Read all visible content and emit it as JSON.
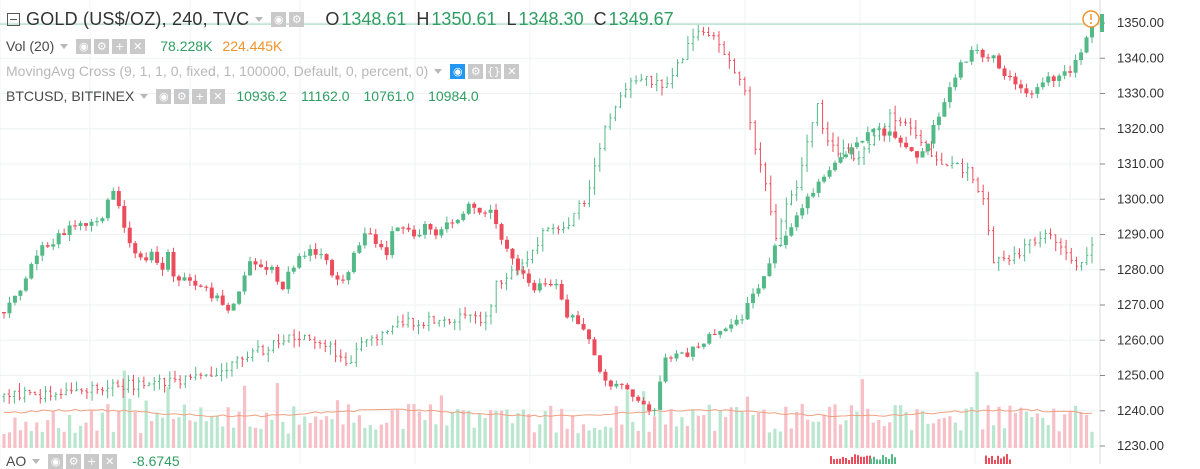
{
  "symbol": {
    "title": "GOLD (US$/OZ), 240, TVC",
    "ohlc": [
      {
        "key": "O",
        "value": "1348.61"
      },
      {
        "key": "H",
        "value": "1350.61"
      },
      {
        "key": "L",
        "value": "1348.30"
      },
      {
        "key": "C",
        "value": "1349.67"
      }
    ]
  },
  "volume": {
    "label": "Vol (20)",
    "value1": "78.228K",
    "value2": "224.445K"
  },
  "moving_avg": {
    "label": "MovingAvg Cross (9, 1, 1, 0, fixed, 1, 100000, Default, 0, percent, 0)"
  },
  "btc": {
    "label": "BTCUSD, BITFINEX",
    "values": [
      "10936.2",
      "11162.0",
      "10761.0",
      "10984.0"
    ]
  },
  "ao": {
    "label": "AO",
    "value": "-8.6745"
  },
  "colors": {
    "up": "#53b987",
    "down": "#eb4d5c",
    "btc_line": "#555555",
    "price_line": "#2f9e62",
    "alert": "#f0922b"
  },
  "chart_data": {
    "type": "candlestick",
    "y_axis": {
      "side": "right",
      "ylim": [
        1230,
        1355
      ],
      "ticks": [
        "1350.00",
        "1340.00",
        "1330.00",
        "1320.00",
        "1310.00",
        "1300.00",
        "1290.00",
        "1280.00",
        "1270.00",
        "1260.00",
        "1250.00",
        "1240.00",
        "1230.00"
      ]
    },
    "grid": true,
    "current_price": 1349.67,
    "gold_path": [
      [
        0,
        1268
      ],
      [
        3,
        1275
      ],
      [
        6,
        1285
      ],
      [
        9,
        1288
      ],
      [
        12,
        1292
      ],
      [
        15,
        1293
      ],
      [
        18,
        1295
      ],
      [
        20,
        1303
      ],
      [
        21,
        1298
      ],
      [
        23,
        1287
      ],
      [
        25,
        1283
      ],
      [
        27,
        1284
      ],
      [
        29,
        1280
      ],
      [
        30,
        1284
      ],
      [
        31,
        1279
      ],
      [
        33,
        1277
      ],
      [
        35,
        1276
      ],
      [
        37,
        1274
      ],
      [
        39,
        1272
      ],
      [
        41,
        1269
      ],
      [
        43,
        1273
      ],
      [
        45,
        1282
      ],
      [
        47,
        1280
      ],
      [
        49,
        1280
      ],
      [
        51,
        1274
      ],
      [
        52,
        1279
      ],
      [
        54,
        1283
      ],
      [
        56,
        1285
      ],
      [
        58,
        1285
      ],
      [
        60,
        1279
      ],
      [
        62,
        1276
      ],
      [
        64,
        1284
      ],
      [
        66,
        1290
      ],
      [
        68,
        1288
      ],
      [
        70,
        1284
      ],
      [
        71,
        1292
      ],
      [
        73,
        1293
      ],
      [
        75,
        1290
      ],
      [
        77,
        1292
      ],
      [
        79,
        1290
      ],
      [
        81,
        1293
      ],
      [
        83,
        1294
      ],
      [
        85,
        1298
      ],
      [
        87,
        1296
      ],
      [
        89,
        1296
      ],
      [
        91,
        1289
      ],
      [
        93,
        1283
      ],
      [
        95,
        1278
      ],
      [
        97,
        1275
      ],
      [
        99,
        1276
      ],
      [
        101,
        1275
      ],
      [
        103,
        1267
      ],
      [
        105,
        1265
      ],
      [
        107,
        1260
      ],
      [
        109,
        1250
      ],
      [
        111,
        1248
      ],
      [
        113,
        1247
      ],
      [
        115,
        1244
      ],
      [
        117,
        1241
      ],
      [
        119,
        1241
      ],
      [
        121,
        1255
      ],
      [
        123,
        1256
      ],
      [
        125,
        1256
      ],
      [
        127,
        1259
      ],
      [
        129,
        1261
      ],
      [
        131,
        1263
      ],
      [
        133,
        1264
      ],
      [
        135,
        1267
      ],
      [
        137,
        1273
      ],
      [
        139,
        1278
      ],
      [
        141,
        1286
      ],
      [
        143,
        1290
      ],
      [
        145,
        1296
      ],
      [
        147,
        1301
      ],
      [
        149,
        1304
      ],
      [
        151,
        1309
      ],
      [
        153,
        1311
      ],
      [
        155,
        1314
      ],
      [
        157,
        1317
      ],
      [
        159,
        1320
      ],
      [
        161,
        1319
      ],
      [
        163,
        1318
      ],
      [
        165,
        1314
      ],
      [
        167,
        1312
      ],
      [
        169,
        1316
      ],
      [
        171,
        1324
      ],
      [
        173,
        1332
      ],
      [
        175,
        1338
      ],
      [
        177,
        1342
      ],
      [
        179,
        1341
      ],
      [
        181,
        1340
      ],
      [
        183,
        1336
      ],
      [
        185,
        1332
      ],
      [
        187,
        1330
      ],
      [
        189,
        1331
      ],
      [
        191,
        1334
      ],
      [
        193,
        1335
      ],
      [
        195,
        1336
      ],
      [
        197,
        1341
      ],
      [
        199,
        1349
      ]
    ],
    "btc_path": [
      [
        0,
        1244
      ],
      [
        8,
        1245
      ],
      [
        15,
        1246
      ],
      [
        22,
        1247
      ],
      [
        30,
        1248
      ],
      [
        38,
        1249
      ],
      [
        42,
        1252
      ],
      [
        47,
        1256
      ],
      [
        51,
        1258
      ],
      [
        55,
        1260
      ],
      [
        58,
        1262
      ],
      [
        61,
        1260
      ],
      [
        64,
        1257
      ],
      [
        66,
        1252
      ],
      [
        68,
        1257
      ],
      [
        72,
        1261
      ],
      [
        75,
        1265
      ],
      [
        79,
        1265
      ],
      [
        82,
        1266
      ],
      [
        86,
        1266
      ],
      [
        90,
        1266
      ],
      [
        93,
        1266
      ],
      [
        95,
        1276
      ],
      [
        98,
        1279
      ],
      [
        101,
        1282
      ],
      [
        104,
        1290
      ],
      [
        107,
        1291
      ],
      [
        110,
        1295
      ],
      [
        113,
        1302
      ],
      [
        116,
        1320
      ],
      [
        119,
        1330
      ],
      [
        122,
        1334
      ],
      [
        125,
        1334
      ],
      [
        128,
        1332
      ],
      [
        131,
        1341
      ],
      [
        134,
        1348
      ],
      [
        137,
        1345
      ],
      [
        140,
        1339
      ],
      [
        143,
        1332
      ],
      [
        145,
        1314
      ],
      [
        147,
        1303
      ],
      [
        149,
        1288
      ],
      [
        151,
        1298
      ],
      [
        153,
        1304
      ],
      [
        155,
        1317
      ],
      [
        157,
        1326
      ],
      [
        159,
        1317
      ],
      [
        162,
        1313
      ],
      [
        165,
        1312
      ],
      [
        168,
        1317
      ],
      [
        171,
        1324
      ],
      [
        174,
        1321
      ],
      [
        177,
        1317
      ],
      [
        180,
        1310
      ],
      [
        183,
        1309
      ],
      [
        186,
        1309
      ],
      [
        189,
        1300
      ],
      [
        191,
        1283
      ],
      [
        194,
        1282
      ],
      [
        197,
        1286
      ],
      [
        199,
        1289
      ],
      [
        203,
        1289
      ],
      [
        207,
        1282
      ],
      [
        210,
        1286
      ]
    ]
  }
}
